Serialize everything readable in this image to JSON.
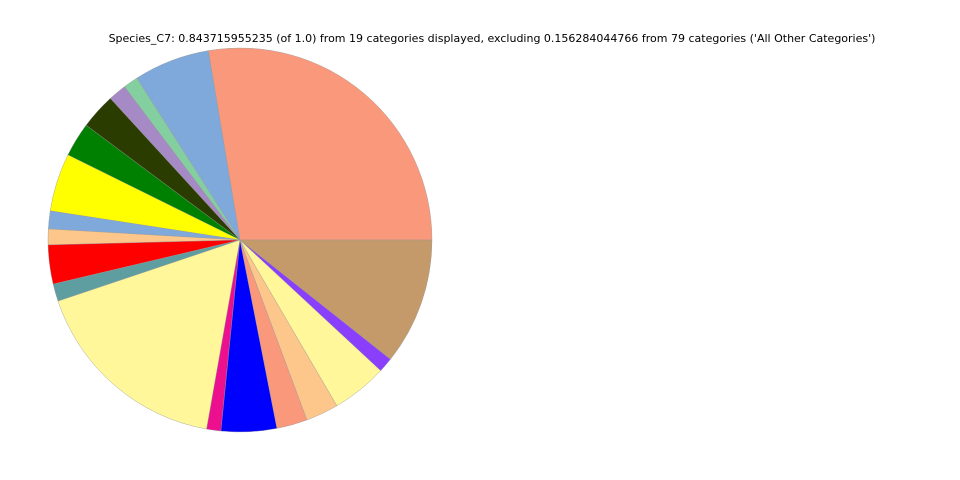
{
  "chart_data": {
    "type": "pie",
    "title": "Species_C7: 0.843715955235 (of 1.0) from 19 categories displayed, excluding 0.156284044766 from 79 categories ('All Other Categories')",
    "values": [
      0.2332,
      0.0539,
      0.0105,
      0.0129,
      0.0253,
      0.0244,
      0.0412,
      0.0127,
      0.0112,
      0.0277,
      0.0124,
      0.1439,
      0.0101,
      0.0394,
      0.0218,
      0.0232,
      0.0394,
      0.0105,
      0.09
    ],
    "colors": [
      "#f9987b",
      "#7fa9db",
      "#84cfa0",
      "#a58ac5",
      "#2b3c00",
      "#008000",
      "#ffff00",
      "#7fa9db",
      "#fdc68a",
      "#ff0000",
      "#5f9ea0",
      "#fff79a",
      "#ec0f8e",
      "#0000ff",
      "#f9987b",
      "#fdc68a",
      "#fff79a",
      "#8a3ffc",
      "#c49a6a"
    ]
  }
}
